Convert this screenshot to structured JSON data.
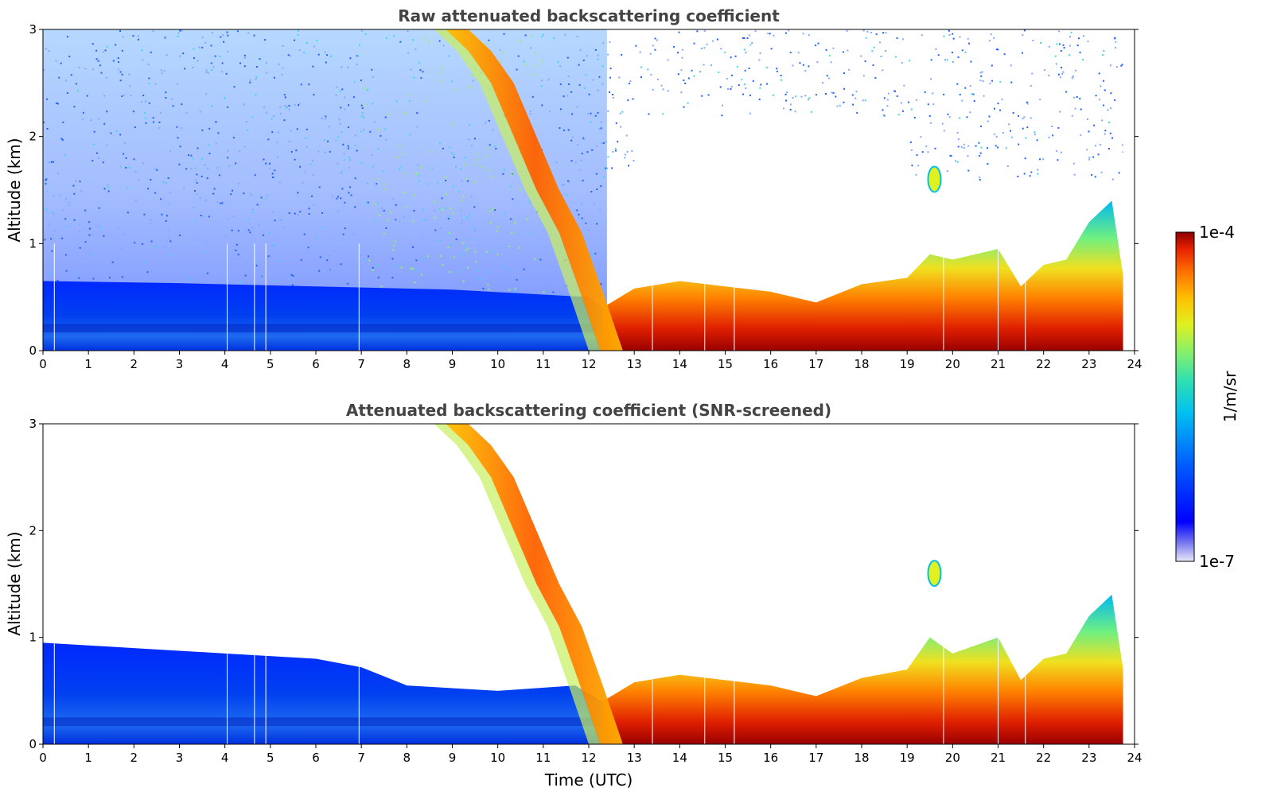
{
  "chart_data": [
    {
      "type": "heatmap",
      "id": "raw",
      "title": "Raw attenuated backscattering coefficient",
      "xlabel": "",
      "ylabel": "Altitude (km)",
      "xlim": [
        0,
        24
      ],
      "ylim": [
        0,
        3
      ],
      "xticks": [
        0,
        1,
        2,
        3,
        4,
        5,
        6,
        7,
        8,
        9,
        10,
        11,
        12,
        13,
        14,
        15,
        16,
        17,
        18,
        19,
        20,
        21,
        22,
        23,
        24
      ],
      "yticks": [
        0,
        1,
        2,
        3
      ],
      "xtick_labels": [
        "0",
        "1",
        "2",
        "3",
        "4",
        "5",
        "6",
        "7",
        "8",
        "9",
        "10",
        "11",
        "12",
        "13",
        "14",
        "15",
        "16",
        "17",
        "18",
        "19",
        "20",
        "21",
        "22",
        "23",
        "24"
      ],
      "ytick_labels": [
        "0",
        "1",
        "2",
        "3"
      ],
      "features": {
        "boundary_layer_top_km": [
          [
            0,
            0.65
          ],
          [
            3,
            0.63
          ],
          [
            6,
            0.6
          ],
          [
            9,
            0.57
          ],
          [
            12,
            0.5
          ],
          [
            12.3,
            0.4
          ],
          [
            13,
            0.58
          ],
          [
            14,
            0.65
          ],
          [
            15,
            0.6
          ],
          [
            16,
            0.55
          ],
          [
            17,
            0.45
          ],
          [
            18,
            0.62
          ],
          [
            19,
            0.68
          ],
          [
            19.5,
            0.9
          ],
          [
            20,
            0.85
          ],
          [
            21,
            0.95
          ],
          [
            21.5,
            0.6
          ],
          [
            22,
            0.8
          ],
          [
            22.5,
            0.85
          ],
          [
            23,
            1.2
          ],
          [
            23.5,
            1.4
          ],
          [
            23.75,
            0.7
          ]
        ],
        "descending_aerosol_plume": [
          [
            9.0,
            3.0
          ],
          [
            9.5,
            2.8
          ],
          [
            10,
            2.5
          ],
          [
            10.5,
            2.0
          ],
          [
            11,
            1.5
          ],
          [
            11.5,
            1.1
          ],
          [
            12,
            0.5
          ],
          [
            12.4,
            0.0
          ]
        ],
        "isolated_cloud": {
          "time": 19.6,
          "altitude_km": 1.6
        }
      }
    },
    {
      "type": "heatmap",
      "id": "screened",
      "title": "Attenuated backscattering coefficient (SNR-screened)",
      "xlabel": "Time (UTC)",
      "ylabel": "Altitude (km)",
      "xlim": [
        0,
        24
      ],
      "ylim": [
        0,
        3
      ],
      "xticks": [
        0,
        1,
        2,
        3,
        4,
        5,
        6,
        7,
        8,
        9,
        10,
        11,
        12,
        13,
        14,
        15,
        16,
        17,
        18,
        19,
        20,
        21,
        22,
        23,
        24
      ],
      "yticks": [
        0,
        1,
        2,
        3
      ],
      "xtick_labels": [
        "0",
        "1",
        "2",
        "3",
        "4",
        "5",
        "6",
        "7",
        "8",
        "9",
        "10",
        "11",
        "12",
        "13",
        "14",
        "15",
        "16",
        "17",
        "18",
        "19",
        "20",
        "21",
        "22",
        "23",
        "24"
      ],
      "ytick_labels": [
        "0",
        "1",
        "2",
        "3"
      ],
      "features": {
        "boundary_layer_top_km": [
          [
            0,
            0.95
          ],
          [
            2,
            0.9
          ],
          [
            4,
            0.85
          ],
          [
            6,
            0.8
          ],
          [
            7,
            0.72
          ],
          [
            8,
            0.55
          ],
          [
            10,
            0.5
          ],
          [
            11.7,
            0.55
          ],
          [
            12.3,
            0.4
          ],
          [
            13,
            0.58
          ],
          [
            14,
            0.65
          ],
          [
            15,
            0.6
          ],
          [
            16,
            0.55
          ],
          [
            17,
            0.45
          ],
          [
            18,
            0.62
          ],
          [
            19,
            0.7
          ],
          [
            19.5,
            1.0
          ],
          [
            20,
            0.85
          ],
          [
            21,
            1.0
          ],
          [
            21.5,
            0.6
          ],
          [
            22,
            0.8
          ],
          [
            22.5,
            0.85
          ],
          [
            23,
            1.2
          ],
          [
            23.5,
            1.4
          ],
          [
            23.75,
            0.7
          ]
        ],
        "descending_aerosol_plume": [
          [
            9.0,
            3.0
          ],
          [
            9.5,
            2.8
          ],
          [
            10,
            2.5
          ],
          [
            10.5,
            2.0
          ],
          [
            11,
            1.5
          ],
          [
            11.5,
            1.1
          ],
          [
            12,
            0.5
          ],
          [
            12.4,
            0.0
          ]
        ],
        "isolated_cloud": {
          "time": 19.6,
          "altitude_km": 1.6
        }
      }
    }
  ],
  "colorbar": {
    "label": "1/m/sr",
    "min_label": "1e-7",
    "max_label": "1e-4",
    "colors": [
      "#e8e8f8",
      "#7070f0",
      "#0000ff",
      "#0060ff",
      "#00c0f0",
      "#30e0b0",
      "#80f070",
      "#e0f020",
      "#ffc000",
      "#ff7000",
      "#e82000",
      "#8b0000"
    ]
  }
}
